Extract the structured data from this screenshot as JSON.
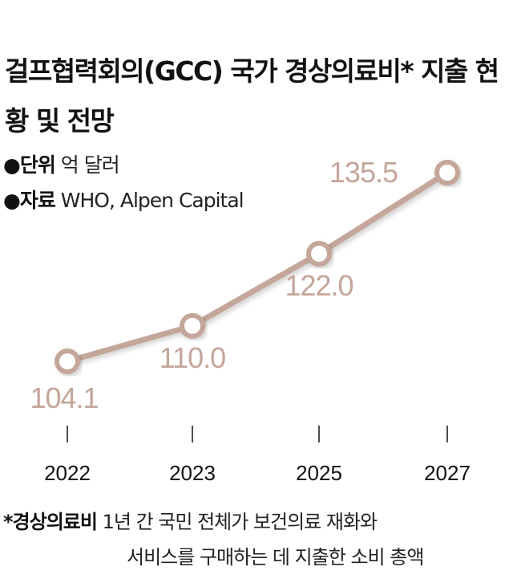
{
  "title": "걸프협력회의(GCC) 국가 경상의료비* 지출 현황 및 전망",
  "meta": {
    "unit_key": "●단위",
    "unit_value": "억 달러",
    "source_key": "●자료",
    "source_value": "WHO, Alpen Capital"
  },
  "footnote": {
    "key": "*경상의료비",
    "line1": "1년 간 국민 전체가 보건의료 재화와",
    "line2": "서비스를 구매하는 데 지출한 소비 총액"
  },
  "colors": {
    "line": "#c4a69a",
    "label": "#c4a69a",
    "tick": "#111111"
  },
  "chart_data": {
    "type": "line",
    "categories": [
      "2022",
      "2023",
      "2025",
      "2027"
    ],
    "values": [
      104.1,
      110.0,
      122.0,
      135.5
    ],
    "value_labels": [
      "104.1",
      "110.0",
      "122.0",
      "135.5"
    ],
    "title": "걸프협력회의(GCC) 국가 경상의료비* 지출 현황 및 전망",
    "unit": "억 달러",
    "grid": false,
    "legend": "none"
  }
}
